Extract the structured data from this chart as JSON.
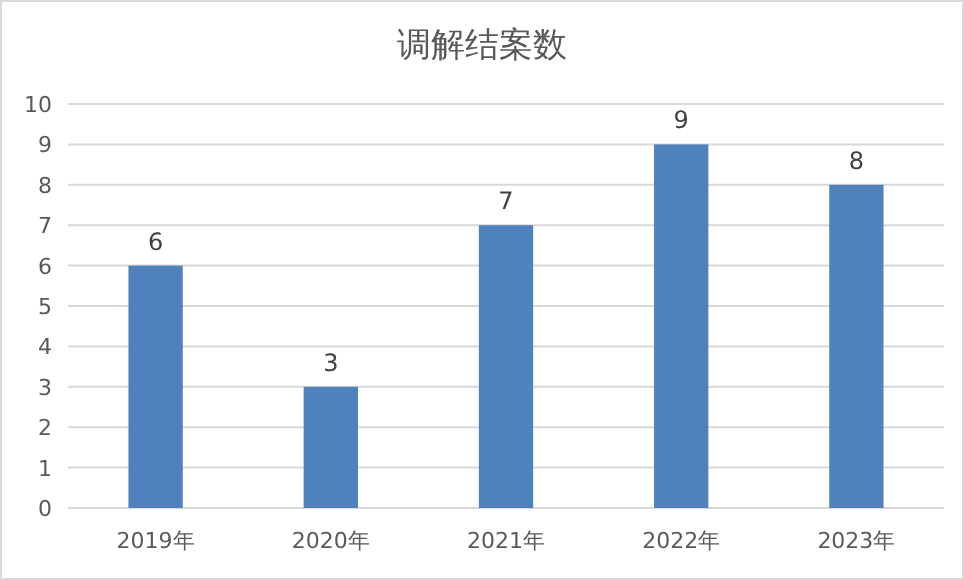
{
  "chart_data": {
    "type": "bar",
    "title": "调解结案数",
    "categories": [
      "2019年",
      "2020年",
      "2021年",
      "2022年",
      "2023年"
    ],
    "values": [
      6,
      3,
      7,
      9,
      8
    ],
    "color": "#4f81bd",
    "ylim": [
      0,
      10
    ],
    "yticks": [
      0,
      1,
      2,
      3,
      4,
      5,
      6,
      7,
      8,
      9,
      10
    ],
    "grid": "y",
    "data_labels": true
  }
}
